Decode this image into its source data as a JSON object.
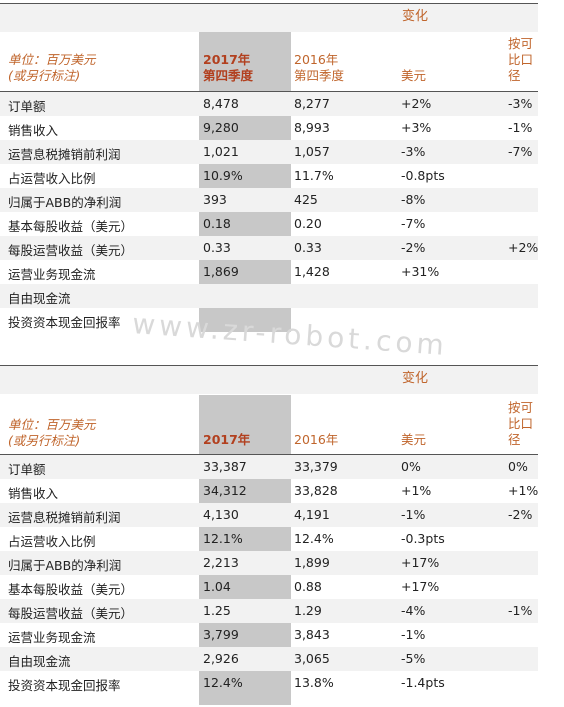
{
  "tables": [
    {
      "change_label": "变化",
      "unit_label": "单位：百万美元",
      "unit_note": "(或另行标注)",
      "col_current": "2017年\n第四季度",
      "col_prior": "2016年\n第四季度",
      "col_usd": "美元",
      "col_comparable": "按可\n比口\n径",
      "rows": [
        [
          "订单额",
          "8,478",
          "8,277",
          "+2%",
          "-3%"
        ],
        [
          "销售收入",
          "9,280",
          "8,993",
          "+3%",
          "-1%"
        ],
        [
          "运营息税摊销前利润",
          "1,021",
          "1,057",
          "-3%",
          "-7%"
        ],
        [
          "占运营收入比例",
          "10.9%",
          "11.7%",
          "-0.8pts",
          ""
        ],
        [
          "归属于ABB的净利润",
          "393",
          "425",
          "-8%",
          ""
        ],
        [
          "基本每股收益（美元）",
          "0.18",
          "0.20",
          "-7%",
          ""
        ],
        [
          "每股运营收益（美元）",
          "0.33",
          "0.33",
          "-2%",
          "+2%"
        ],
        [
          "运营业务现金流",
          "1,869",
          "1,428",
          "+31%",
          ""
        ],
        [
          "自由现金流",
          "",
          "",
          "",
          ""
        ],
        [
          "投资资本现金回报率",
          "",
          "",
          "",
          ""
        ]
      ]
    },
    {
      "change_label": "变化",
      "unit_label": "单位：百万美元",
      "unit_note": "(或另行标注)",
      "col_current": "2017年",
      "col_prior": "2016年",
      "col_usd": "美元",
      "col_comparable": "按可\n比口\n径",
      "rows": [
        [
          "订单额",
          "33,387",
          "33,379",
          "0%",
          "0%"
        ],
        [
          "销售收入",
          "34,312",
          "33,828",
          "+1%",
          "+1%"
        ],
        [
          "运营息税摊销前利润",
          "4,130",
          "4,191",
          "-1%",
          "-2%"
        ],
        [
          "占运营收入比例",
          "12.1%",
          "12.4%",
          "-0.3pts",
          ""
        ],
        [
          "归属于ABB的净利润",
          "2,213",
          "1,899",
          "+17%",
          ""
        ],
        [
          "基本每股收益（美元）",
          "1.04",
          "0.88",
          "+17%",
          ""
        ],
        [
          "每股运营收益（美元）",
          "1.25",
          "1.29",
          "-4%",
          "-1%"
        ],
        [
          "运营业务现金流",
          "3,799",
          "3,843",
          "-1%",
          ""
        ],
        [
          "自由现金流",
          "2,926",
          "3,065",
          "-5%",
          ""
        ],
        [
          "投资资本现金回报率",
          "12.4%",
          "13.8%",
          "-1.4pts",
          ""
        ]
      ]
    }
  ],
  "watermark": "www.zr-robot.com"
}
